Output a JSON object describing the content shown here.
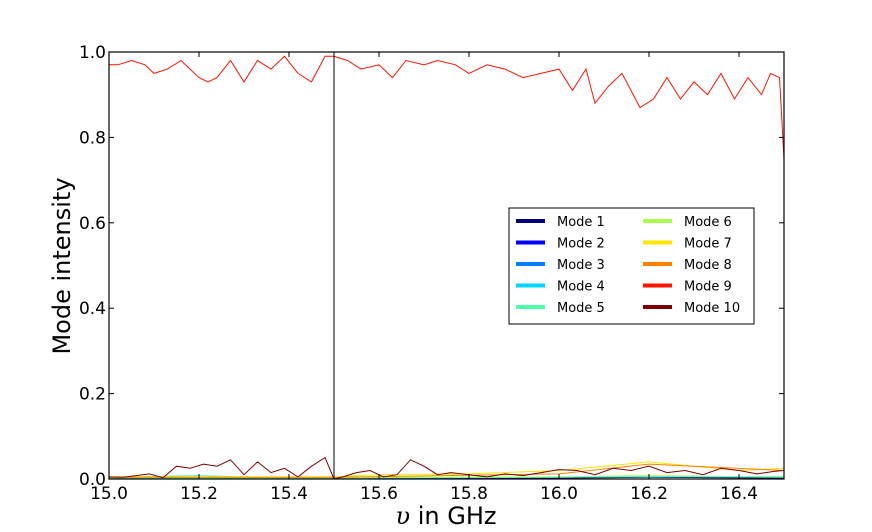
{
  "chart_data": {
    "type": "line",
    "xlabel": {
      "symbol": "υ",
      "text": " in GHz"
    },
    "ylabel": "Mode intensity",
    "xlim": [
      15.0,
      16.5
    ],
    "ylim": [
      0.0,
      1.0
    ],
    "xticks": [
      "15.0",
      "15.2",
      "15.4",
      "15.6",
      "15.8",
      "16.0",
      "16.2",
      "16.4"
    ],
    "yticks": [
      "0.0",
      "0.2",
      "0.4",
      "0.6",
      "0.8",
      "1.0"
    ],
    "grid": false,
    "legend_position": "center-right",
    "vertical_marker_x": 15.5,
    "series": [
      {
        "name": "Mode 1",
        "color": "#00007f",
        "x": [
          15.0,
          15.5,
          16.0,
          16.2,
          16.5
        ],
        "values": [
          0.0,
          0.001,
          0.002,
          0.004,
          0.002
        ]
      },
      {
        "name": "Mode 2",
        "color": "#0000ff",
        "x": [
          15.0,
          15.5,
          16.0,
          16.2,
          16.5
        ],
        "values": [
          0.001,
          0.001,
          0.003,
          0.005,
          0.003
        ]
      },
      {
        "name": "Mode 3",
        "color": "#007fff",
        "x": [
          15.0,
          15.5,
          16.0,
          16.2,
          16.5
        ],
        "values": [
          0.002,
          0.002,
          0.004,
          0.006,
          0.004
        ]
      },
      {
        "name": "Mode 4",
        "color": "#00d4ff",
        "x": [
          15.0,
          15.5,
          16.0,
          16.2,
          16.5
        ],
        "values": [
          0.003,
          0.002,
          0.004,
          0.006,
          0.004
        ]
      },
      {
        "name": "Mode 5",
        "color": "#4cffaa",
        "x": [
          15.0,
          15.1,
          15.2,
          15.3,
          15.4,
          15.5,
          16.0,
          16.5
        ],
        "values": [
          0.004,
          0.006,
          0.008,
          0.005,
          0.004,
          0.003,
          0.005,
          0.006
        ]
      },
      {
        "name": "Mode 6",
        "color": "#aaff4c",
        "x": [
          15.0,
          15.5,
          16.0,
          16.2,
          16.5
        ],
        "values": [
          0.003,
          0.003,
          0.005,
          0.008,
          0.005
        ]
      },
      {
        "name": "Mode 7",
        "color": "#ffe500",
        "x": [
          15.0,
          15.5,
          15.6,
          15.8,
          16.0,
          16.1,
          16.2,
          16.3,
          16.4,
          16.5
        ],
        "values": [
          0.005,
          0.005,
          0.01,
          0.012,
          0.02,
          0.03,
          0.04,
          0.03,
          0.02,
          0.025
        ]
      },
      {
        "name": "Mode 8",
        "color": "#ff7f00",
        "x": [
          15.0,
          15.5,
          16.0,
          16.2,
          16.5
        ],
        "values": [
          0.004,
          0.004,
          0.012,
          0.035,
          0.02
        ]
      },
      {
        "name": "Mode 9",
        "color": "#ff1400",
        "x": [
          15.0,
          15.02,
          15.05,
          15.08,
          15.1,
          15.13,
          15.16,
          15.2,
          15.22,
          15.24,
          15.27,
          15.3,
          15.33,
          15.36,
          15.39,
          15.42,
          15.45,
          15.48,
          15.5,
          15.53,
          15.56,
          15.6,
          15.63,
          15.66,
          15.7,
          15.73,
          15.77,
          15.8,
          15.84,
          15.88,
          15.92,
          15.96,
          16.0,
          16.03,
          16.06,
          16.08,
          16.11,
          16.14,
          16.18,
          16.21,
          16.24,
          16.27,
          16.3,
          16.33,
          16.36,
          16.39,
          16.42,
          16.45,
          16.47,
          16.49,
          16.5
        ],
        "values": [
          0.97,
          0.97,
          0.98,
          0.97,
          0.95,
          0.96,
          0.98,
          0.94,
          0.93,
          0.94,
          0.98,
          0.93,
          0.98,
          0.96,
          0.99,
          0.95,
          0.93,
          0.99,
          0.99,
          0.98,
          0.96,
          0.97,
          0.94,
          0.98,
          0.97,
          0.98,
          0.97,
          0.95,
          0.97,
          0.96,
          0.94,
          0.95,
          0.96,
          0.91,
          0.96,
          0.88,
          0.92,
          0.95,
          0.87,
          0.89,
          0.94,
          0.89,
          0.93,
          0.9,
          0.95,
          0.89,
          0.94,
          0.9,
          0.95,
          0.94,
          0.75
        ]
      },
      {
        "name": "Mode 10",
        "color": "#7f0000",
        "x": [
          15.0,
          15.03,
          15.06,
          15.09,
          15.12,
          15.15,
          15.18,
          15.21,
          15.24,
          15.27,
          15.3,
          15.33,
          15.36,
          15.39,
          15.42,
          15.45,
          15.48,
          15.5,
          15.52,
          15.55,
          15.58,
          15.61,
          15.64,
          15.67,
          15.7,
          15.73,
          15.76,
          15.8,
          15.84,
          15.88,
          15.92,
          15.96,
          16.0,
          16.04,
          16.08,
          16.12,
          16.16,
          16.2,
          16.24,
          16.28,
          16.32,
          16.36,
          16.4,
          16.44,
          16.48,
          16.5
        ],
        "values": [
          0.005,
          0.004,
          0.008,
          0.012,
          0.003,
          0.03,
          0.025,
          0.035,
          0.03,
          0.045,
          0.01,
          0.04,
          0.015,
          0.025,
          0.005,
          0.03,
          0.05,
          0.0,
          0.005,
          0.015,
          0.02,
          0.005,
          0.01,
          0.045,
          0.03,
          0.01,
          0.015,
          0.01,
          0.005,
          0.012,
          0.008,
          0.015,
          0.022,
          0.02,
          0.01,
          0.025,
          0.02,
          0.03,
          0.015,
          0.02,
          0.01,
          0.025,
          0.02,
          0.012,
          0.018,
          0.02
        ]
      }
    ]
  }
}
